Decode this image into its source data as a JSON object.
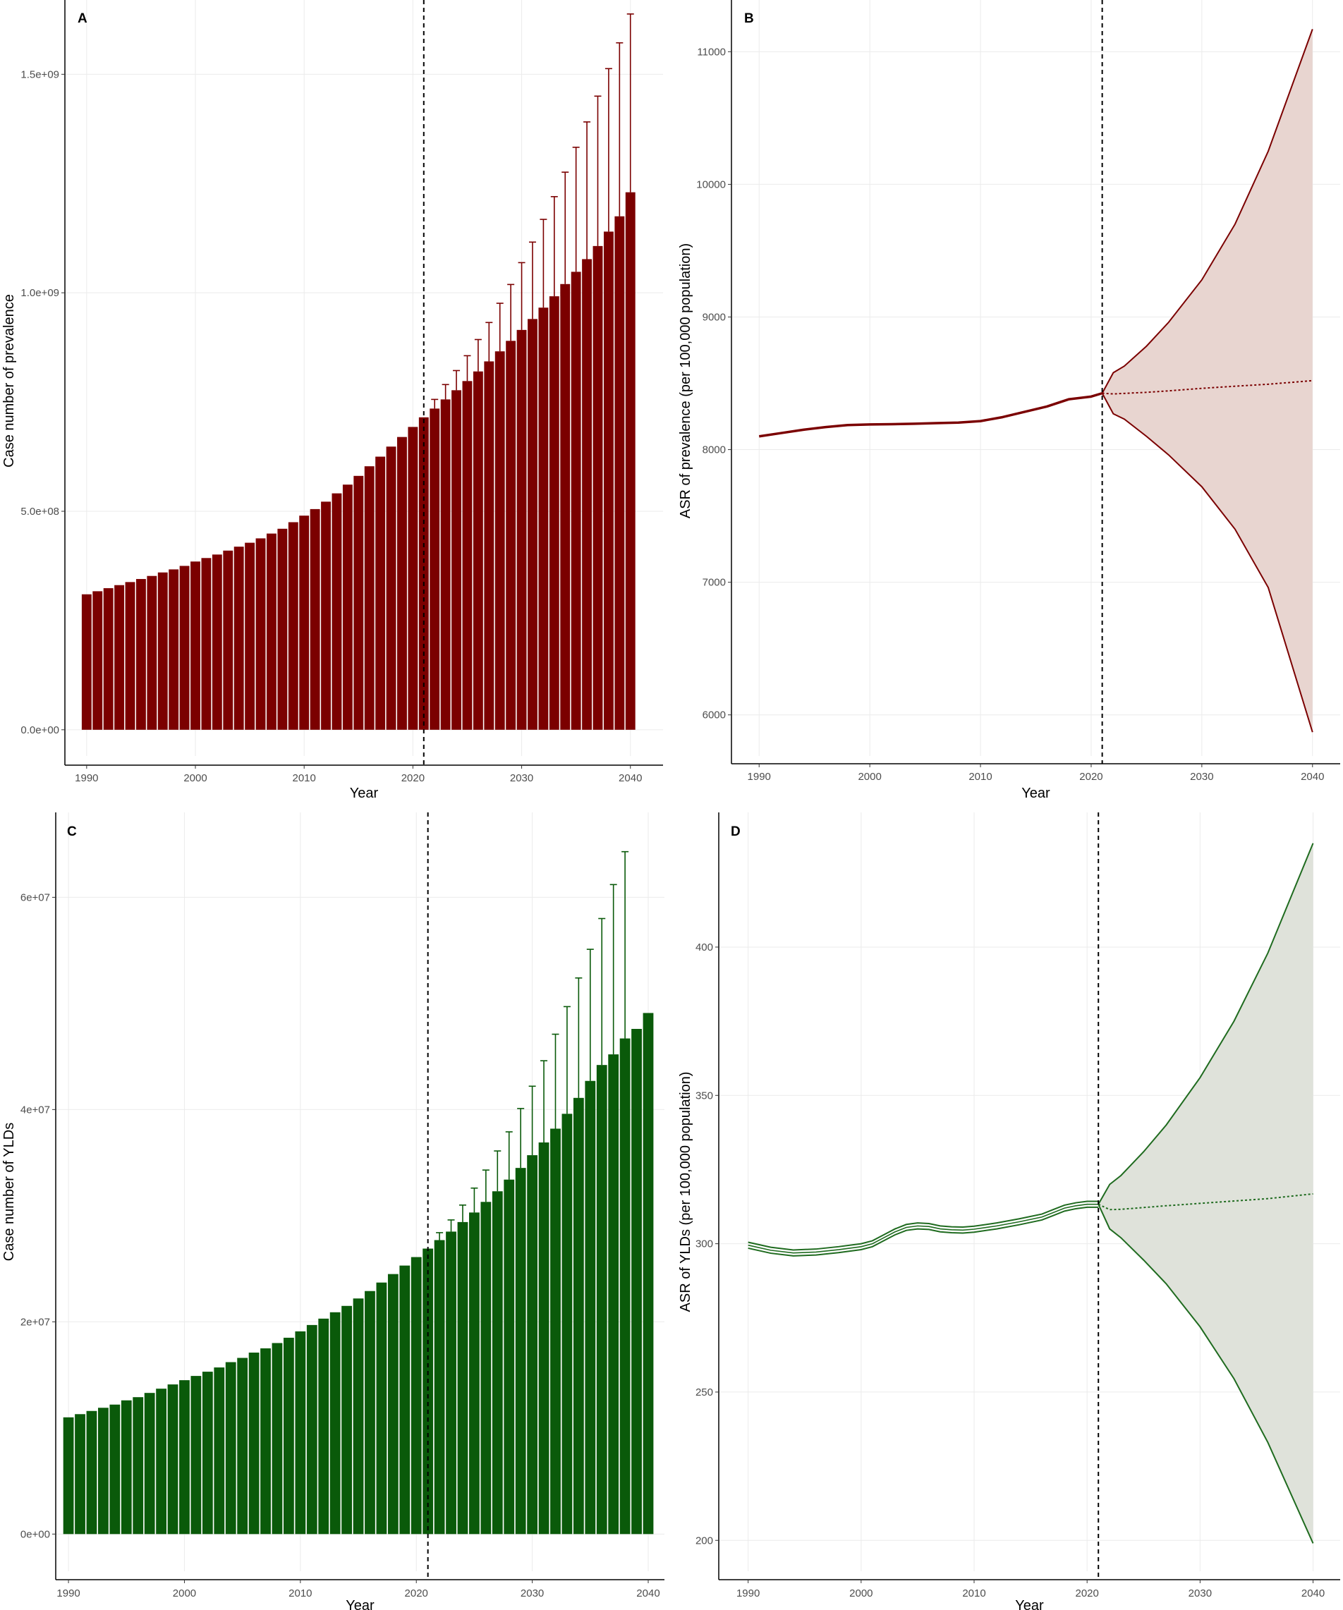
{
  "chart_data": [
    {
      "panel": "A",
      "type": "bar",
      "xlabel": "Year",
      "ylabel": "Case number of prevalence",
      "x_ticks": [
        "1990",
        "2000",
        "2010",
        "2020",
        "2030",
        "2040"
      ],
      "y_ticks": [
        "0.0e+00",
        "5.0e+08",
        "1.0e+09",
        "1.5e+09"
      ],
      "xlim": [
        1988,
        2043
      ],
      "ylim": [
        -60000000,
        1670000000
      ],
      "forecast_start": 2021,
      "grid": true,
      "color": "#7b0000",
      "x": [
        1990,
        1991,
        1992,
        1993,
        1994,
        1995,
        1996,
        1997,
        1998,
        1999,
        2000,
        2001,
        2002,
        2003,
        2004,
        2005,
        2006,
        2007,
        2008,
        2009,
        2010,
        2011,
        2012,
        2013,
        2014,
        2015,
        2016,
        2017,
        2018,
        2019,
        2020,
        2021,
        2022,
        2023,
        2024,
        2025,
        2026,
        2027,
        2028,
        2029,
        2030,
        2031,
        2032,
        2033,
        2034,
        2035,
        2036,
        2037,
        2038,
        2039,
        2040
      ],
      "values": [
        310000000,
        317000000,
        324000000,
        331000000,
        338000000,
        345000000,
        352000000,
        360000000,
        367000000,
        375000000,
        385000000,
        393000000,
        401000000,
        410000000,
        419000000,
        428000000,
        438000000,
        449000000,
        460000000,
        475000000,
        490000000,
        505000000,
        522000000,
        541000000,
        561000000,
        581000000,
        603000000,
        625000000,
        648000000,
        670000000,
        693000000,
        715000000,
        735000000,
        756000000,
        777000000,
        798000000,
        820000000,
        843000000,
        866000000,
        890000000,
        915000000,
        940000000,
        966000000,
        992000000,
        1020000000,
        1048000000,
        1077000000,
        1107000000,
        1140000000,
        1175000000,
        1230000000
      ],
      "upper": [
        null,
        null,
        null,
        null,
        null,
        null,
        null,
        null,
        null,
        null,
        null,
        null,
        null,
        null,
        null,
        null,
        null,
        null,
        null,
        null,
        null,
        null,
        null,
        null,
        null,
        null,
        null,
        null,
        null,
        null,
        null,
        null,
        756000000,
        790000000,
        822000000,
        856000000,
        893000000,
        932000000,
        976000000,
        1019000000,
        1069000000,
        1116000000,
        1168000000,
        1220000000,
        1276000000,
        1333000000,
        1391000000,
        1450000000,
        1513000000,
        1572000000,
        1638000000
      ]
    },
    {
      "panel": "B",
      "type": "line",
      "xlabel": "Year",
      "ylabel": "ASR of prevalence (per 100,000 population)",
      "x_ticks": [
        "1990",
        "2000",
        "2010",
        "2020",
        "2030",
        "2040"
      ],
      "y_ticks": [
        "6000",
        "7000",
        "8000",
        "9000",
        "10000",
        "11000"
      ],
      "xlim": [
        1987.5,
        2042.5
      ],
      "ylim": [
        5690,
        11390
      ],
      "forecast_start": 2021,
      "grid": true,
      "color": "#7b0000",
      "band_color": "#e8d5d0",
      "observed": {
        "x": [
          1990,
          1992,
          1994,
          1996,
          1998,
          2000,
          2002,
          2004,
          2006,
          2008,
          2010,
          2012,
          2014,
          2016,
          2018,
          2020,
          2021
        ],
        "y": [
          8100,
          8125,
          8150,
          8170,
          8185,
          8190,
          8192,
          8195,
          8200,
          8204,
          8215,
          8245,
          8285,
          8325,
          8380,
          8400,
          8425
        ]
      },
      "forecast": {
        "x": [
          2021,
          2022,
          2023,
          2025,
          2027,
          2030,
          2033,
          2036,
          2040
        ],
        "mean": [
          8425,
          8420,
          8424,
          8432,
          8443,
          8462,
          8478,
          8493,
          8520
        ],
        "upper": [
          8425,
          8580,
          8630,
          8780,
          8960,
          9280,
          9700,
          10250,
          11170
        ],
        "lower": [
          8425,
          8270,
          8230,
          8100,
          7960,
          7720,
          7400,
          6960,
          5870
        ]
      }
    },
    {
      "panel": "C",
      "type": "bar",
      "xlabel": "Year",
      "ylabel": "Case number of YLDs",
      "x_ticks": [
        "1990",
        "2000",
        "2010",
        "2020",
        "2030",
        "2040"
      ],
      "y_ticks": [
        "0e+00",
        "2e+07",
        "4e+07",
        "6e+07"
      ],
      "xlim": [
        1988.9,
        2041.4
      ],
      "ylim": [
        -3500000,
        68000000
      ],
      "forecast_start": 2021,
      "grid": true,
      "color": "#0a5a0a",
      "x": [
        1990,
        1991,
        1992,
        1993,
        1994,
        1995,
        1996,
        1997,
        1998,
        1999,
        2000,
        2001,
        2002,
        2003,
        2004,
        2005,
        2006,
        2007,
        2008,
        2009,
        2010,
        2011,
        2012,
        2013,
        2014,
        2015,
        2016,
        2017,
        2018,
        2019,
        2020,
        2021,
        2022,
        2023,
        2024,
        2025,
        2026,
        2027,
        2028,
        2029,
        2030,
        2031,
        2032,
        2033,
        2034,
        2035,
        2036,
        2037,
        2038,
        2039,
        2040
      ],
      "values": [
        11000000,
        11300000,
        11600000,
        11900000,
        12200000,
        12600000,
        12900000,
        13300000,
        13700000,
        14100000,
        14500000,
        14900000,
        15300000,
        15700000,
        16200000,
        16600000,
        17100000,
        17500000,
        18000000,
        18500000,
        19100000,
        19700000,
        20300000,
        20900000,
        21500000,
        22200000,
        22900000,
        23700000,
        24500000,
        25300000,
        26100000,
        26900000,
        27700000,
        28500000,
        29400000,
        30300000,
        31300000,
        32300000,
        33400000,
        34500000,
        35700000,
        36900000,
        38200000,
        39600000,
        41100000,
        42700000,
        44200000,
        45200000,
        46700000,
        47600000,
        49100000
      ],
      "upper": [
        null,
        null,
        null,
        null,
        null,
        null,
        null,
        null,
        null,
        null,
        null,
        null,
        null,
        null,
        null,
        null,
        null,
        null,
        null,
        null,
        null,
        null,
        null,
        null,
        null,
        null,
        null,
        null,
        null,
        null,
        null,
        null,
        28400000,
        29600000,
        31000000,
        32600000,
        34300000,
        36100000,
        37900000,
        40100000,
        42200000,
        44600000,
        47100000,
        49700000,
        52400000,
        55100000,
        58000000,
        61200000,
        64300000,
        null,
        null
      ]
    },
    {
      "panel": "D",
      "type": "line",
      "xlabel": "Year",
      "ylabel": "ASR of YLDs (per 100,000 population)",
      "x_ticks": [
        "1990",
        "2000",
        "2010",
        "2020",
        "2030",
        "2040"
      ],
      "y_ticks": [
        "200",
        "250",
        "300",
        "350",
        "400"
      ],
      "xlim": [
        1987.4,
        2042.4
      ],
      "ylim": [
        189.6,
        445.4
      ],
      "forecast_start": 2021,
      "grid": true,
      "color": "#1f6b1f",
      "band_color": "#dfe2da",
      "observed": {
        "x": [
          1990,
          1992,
          1994,
          1996,
          1998,
          2000,
          2001,
          2002,
          2003,
          2004,
          2005,
          2006,
          2007,
          2008,
          2009,
          2010,
          2012,
          2014,
          2016,
          2017,
          2018,
          2019,
          2020,
          2021
        ],
        "y": [
          299.5,
          297.8,
          296.9,
          297.2,
          298.0,
          299.0,
          300.0,
          302.0,
          304.0,
          305.5,
          306.0,
          305.8,
          305.0,
          304.7,
          304.6,
          304.9,
          306.0,
          307.4,
          309.0,
          310.5,
          312.0,
          312.8,
          313.3,
          313.3
        ],
        "upper": [
          300.5,
          298.8,
          297.9,
          298.2,
          299.0,
          300.0,
          301.0,
          303.0,
          305.0,
          306.5,
          307.0,
          306.8,
          306.0,
          305.7,
          305.6,
          305.9,
          307.0,
          308.4,
          310.0,
          311.5,
          313.0,
          313.8,
          314.3,
          314.3
        ],
        "lower": [
          298.5,
          296.8,
          295.9,
          296.2,
          297.0,
          298.0,
          299.0,
          301.0,
          303.0,
          304.5,
          305.0,
          304.8,
          304.0,
          303.7,
          303.6,
          303.9,
          305.0,
          306.4,
          308.0,
          309.5,
          311.0,
          311.8,
          312.3,
          312.3
        ]
      },
      "forecast": {
        "x": [
          2021,
          2022,
          2023,
          2025,
          2027,
          2030,
          2033,
          2036,
          2040
        ],
        "mean": [
          313.3,
          311.5,
          311.6,
          312.2,
          312.8,
          313.6,
          314.4,
          315.2,
          316.8
        ],
        "upper": [
          313.3,
          320.0,
          323.0,
          331.0,
          340.0,
          356.0,
          375.0,
          398.0,
          435.0
        ],
        "lower": [
          313.3,
          305.0,
          302.0,
          294.5,
          286.5,
          272.0,
          254.5,
          233.0,
          199.0
        ]
      }
    }
  ]
}
